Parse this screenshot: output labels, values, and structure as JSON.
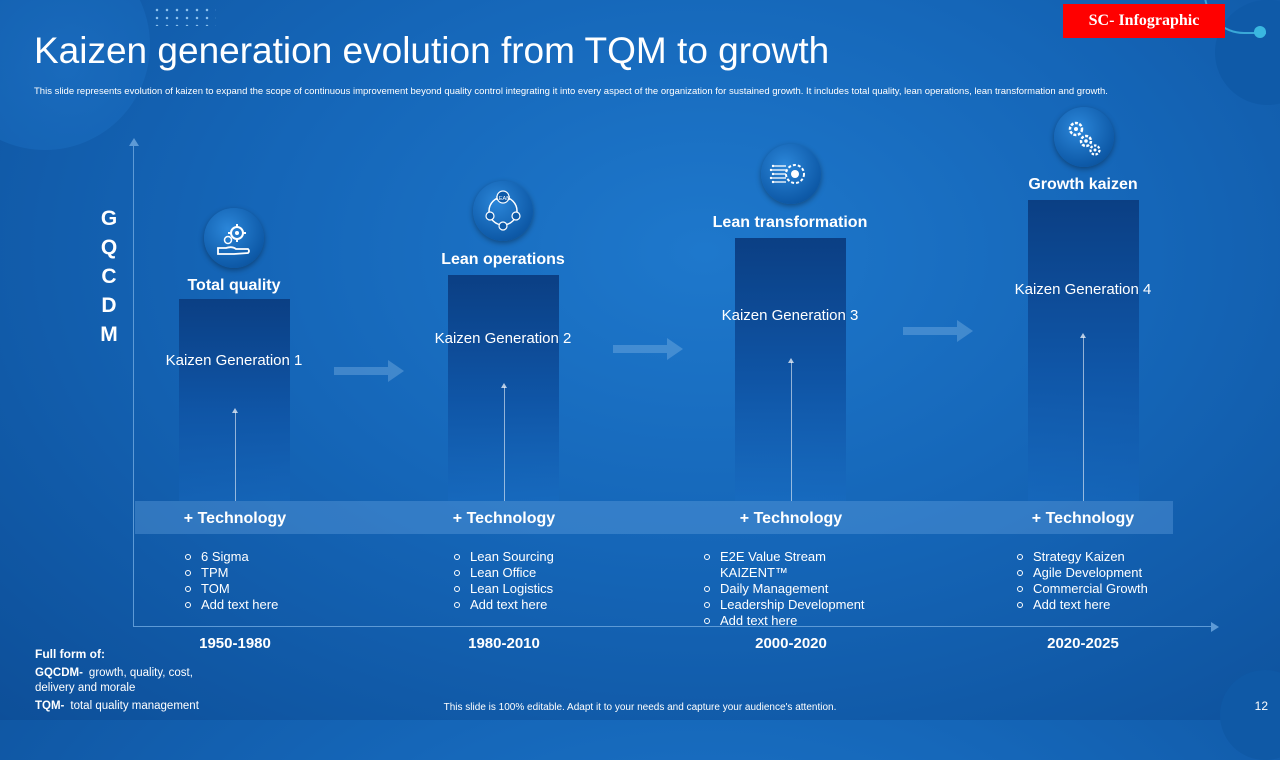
{
  "header": {
    "title": "Kaizen generation evolution from TQM to growth",
    "subtitle": "This slide represents evolution of kaizen to expand the scope of continuous improvement beyond quality control integrating it into every aspect of the organization for sustained growth. It includes total quality, lean operations, lean transformation and growth.",
    "badge": "SC- Infographic"
  },
  "yaxis_letters": [
    "G",
    "Q",
    "C",
    "D",
    "M"
  ],
  "stages": [
    {
      "stage": "Total quality",
      "generation": "Kaizen Generation 1",
      "technology": "+ Technology",
      "items": [
        "6 Sigma",
        "TPM",
        "TOM",
        "Add text here"
      ],
      "period": "1950-1980",
      "icon": "hand-gears-icon"
    },
    {
      "stage": "Lean operations",
      "generation": "Kaizen Generation 2",
      "technology": "+ Technology",
      "items": [
        "Lean Sourcing",
        "Lean Office",
        "Lean Logistics",
        "Add text here"
      ],
      "period": "1980-2010",
      "icon": "lean-cycle-icon",
      "icon_text": "LEAN"
    },
    {
      "stage": "Lean transformation",
      "generation": "Kaizen Generation 3",
      "technology": "+ Technology",
      "items": [
        "E2E Value Stream",
        "KAIZENT™",
        "Daily Management",
        "Leadership Development",
        "Add text here"
      ],
      "period": "2000-2020",
      "icon": "digital-gear-icon"
    },
    {
      "stage": "Growth kaizen",
      "generation": "Kaizen Generation 4",
      "technology": "+ Technology",
      "items": [
        "Strategy Kaizen",
        "Agile Development",
        "Commercial Growth",
        "Add text here"
      ],
      "period": "2020-2025",
      "icon": "gears-icon"
    }
  ],
  "full_form": {
    "heading": "Full form of:",
    "gqcdm_key": "GQCDM-",
    "gqcdm_value": "growth, quality, cost,",
    "gqcdm_value_2": "delivery and morale",
    "tqm_key": "TQM-",
    "tqm_value": "total quality management"
  },
  "footer": "This slide is 100% editable. Adapt it to your needs and capture your audience's attention.",
  "page_number": "12"
}
